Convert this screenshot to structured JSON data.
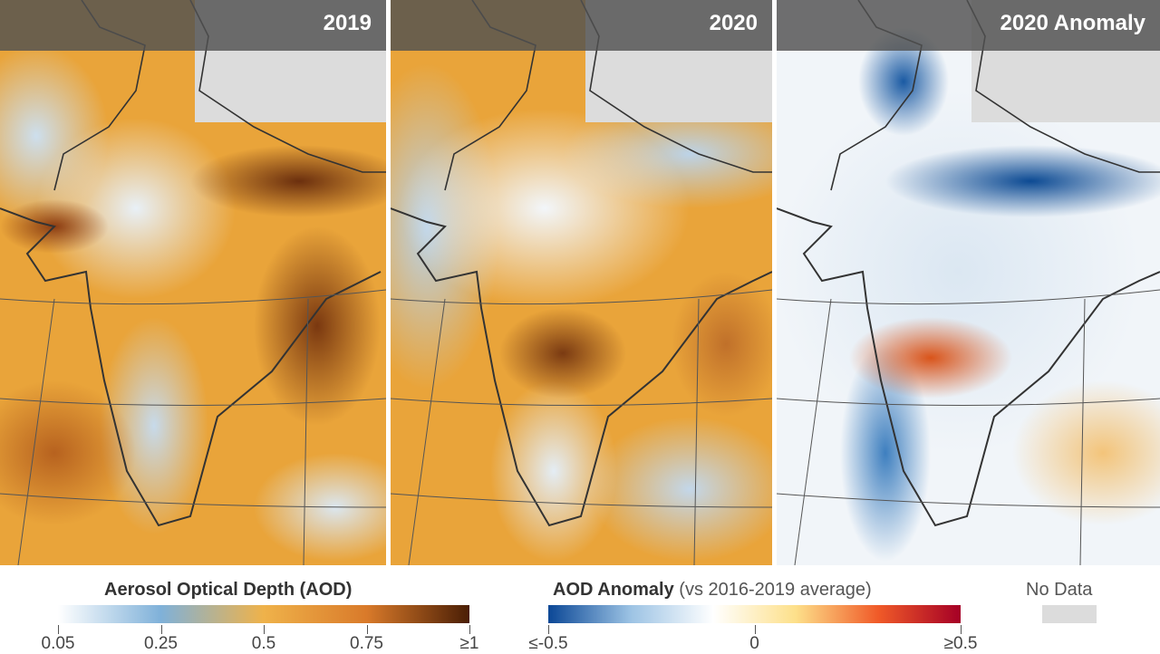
{
  "panels": [
    {
      "title": "2019"
    },
    {
      "title": "2020"
    },
    {
      "title": "2020 Anomaly"
    }
  ],
  "legend_aod": {
    "title": "Aerosol Optical Depth (AOD)",
    "ticks": [
      "0.05",
      "0.25",
      "0.5",
      "0.75",
      "≥1"
    ],
    "colors": [
      "#ffffff",
      "#7fb1d9",
      "#efb24a",
      "#d97a2a",
      "#4a1e05"
    ]
  },
  "legend_anomaly": {
    "title": "AOD Anomaly",
    "subtitle": "(vs 2016-2019 average)",
    "ticks": [
      "≤-0.5",
      "0",
      "≥0.5"
    ],
    "colors": [
      "#0b4796",
      "#9cc3e4",
      "#ffffff",
      "#fde08a",
      "#f05a28",
      "#a50026"
    ]
  },
  "legend_nodata": {
    "label": "No Data",
    "color": "#dcdcdc"
  }
}
